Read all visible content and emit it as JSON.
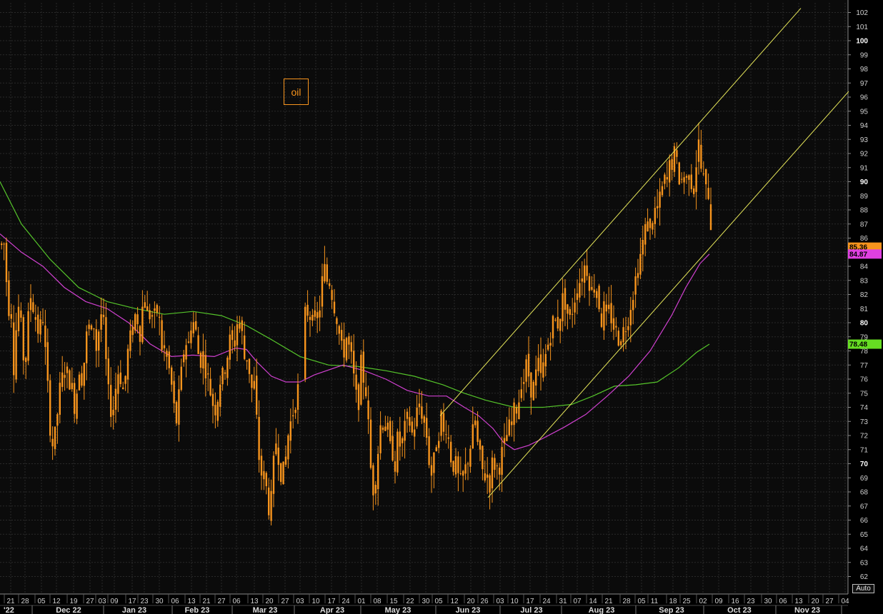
{
  "chart_data": {
    "type": "candlestick",
    "annotation": "oil",
    "auto_label": "Auto",
    "ylim": [
      61.5,
      102.5
    ],
    "y_ticks": [
      62,
      63,
      64,
      65,
      66,
      67,
      68,
      69,
      70,
      71,
      72,
      73,
      74,
      75,
      76,
      77,
      78,
      79,
      80,
      81,
      82,
      83,
      84,
      85,
      86,
      87,
      88,
      89,
      90,
      91,
      92,
      93,
      94,
      95,
      96,
      97,
      98,
      99,
      100,
      101,
      102
    ],
    "y_ticks_bold": [
      70,
      80,
      90,
      100
    ],
    "x_tick_labels": [
      "21",
      "28",
      "05",
      "12",
      "19",
      "27",
      "03",
      "09",
      "17",
      "23",
      "30",
      "06",
      "13",
      "21",
      "27",
      "06",
      "13",
      "20",
      "27",
      "03",
      "10",
      "17",
      "24",
      "01",
      "08",
      "15",
      "22",
      "30",
      "05",
      "12",
      "20",
      "26",
      "03",
      "10",
      "17",
      "24",
      "31",
      "07",
      "14",
      "21",
      "28",
      "05",
      "11",
      "18",
      "25",
      "02",
      "09",
      "16",
      "23",
      "30",
      "06",
      "13",
      "20",
      "27",
      "04"
    ],
    "month_labels": [
      "'22",
      "Dec 22",
      "Jan 23",
      "Feb 23",
      "Mar 23",
      "Apr 23",
      "May 23",
      "Jun 23",
      "Jul 23",
      "Aug 23",
      "Sep 23",
      "Oct 23",
      "Nov 23"
    ],
    "price_path": [
      [
        0,
        85.5
      ],
      [
        5,
        85.6
      ],
      [
        10,
        81
      ],
      [
        14,
        81.5
      ],
      [
        18,
        77
      ],
      [
        22,
        80
      ],
      [
        26,
        81.5
      ],
      [
        30,
        78
      ],
      [
        34,
        77
      ],
      [
        38,
        80
      ],
      [
        42,
        82
      ],
      [
        46,
        81
      ],
      [
        50,
        80
      ],
      [
        54,
        79
      ],
      [
        58,
        81
      ],
      [
        62,
        78
      ],
      [
        66,
        75
      ],
      [
        70,
        72
      ],
      [
        74,
        71
      ],
      [
        78,
        73
      ],
      [
        82,
        75
      ],
      [
        86,
        76
      ],
      [
        90,
        77
      ],
      [
        94,
        76
      ],
      [
        98,
        76
      ],
      [
        102,
        74
      ],
      [
        106,
        75
      ],
      [
        110,
        77
      ],
      [
        114,
        76
      ],
      [
        118,
        78
      ],
      [
        122,
        80
      ],
      [
        126,
        79
      ],
      [
        130,
        80
      ],
      [
        134,
        78
      ],
      [
        138,
        80
      ],
      [
        142,
        81
      ],
      [
        146,
        78
      ],
      [
        150,
        75
      ],
      [
        154,
        74
      ],
      [
        158,
        74
      ],
      [
        162,
        76
      ],
      [
        166,
        77
      ],
      [
        170,
        75
      ],
      [
        174,
        76
      ],
      [
        178,
        78
      ],
      [
        182,
        79
      ],
      [
        186,
        80
      ],
      [
        190,
        81
      ],
      [
        194,
        79
      ],
      [
        198,
        81
      ],
      [
        202,
        82
      ],
      [
        206,
        80
      ],
      [
        210,
        81
      ],
      [
        214,
        80
      ],
      [
        218,
        81
      ],
      [
        222,
        80
      ],
      [
        226,
        78
      ],
      [
        230,
        78
      ],
      [
        234,
        77
      ],
      [
        238,
        76
      ],
      [
        242,
        74
      ],
      [
        246,
        73
      ],
      [
        250,
        75
      ],
      [
        254,
        77
      ],
      [
        258,
        79
      ],
      [
        262,
        78
      ],
      [
        266,
        80
      ],
      [
        270,
        80
      ],
      [
        274,
        79
      ],
      [
        278,
        77
      ],
      [
        282,
        78
      ],
      [
        286,
        77
      ],
      [
        290,
        76
      ],
      [
        294,
        75
      ],
      [
        298,
        74
      ],
      [
        302,
        74
      ],
      [
        306,
        76
      ],
      [
        310,
        76
      ],
      [
        314,
        77
      ],
      [
        318,
        78
      ],
      [
        322,
        79
      ],
      [
        326,
        78
      ],
      [
        330,
        80
      ],
      [
        334,
        80
      ],
      [
        338,
        79
      ],
      [
        342,
        77
      ],
      [
        346,
        78
      ],
      [
        350,
        75
      ],
      [
        354,
        76
      ],
      [
        358,
        73
      ],
      [
        362,
        70
      ],
      [
        366,
        69
      ],
      [
        370,
        69
      ],
      [
        374,
        67
      ],
      [
        378,
        67
      ],
      [
        382,
        70
      ],
      [
        386,
        72
      ],
      [
        390,
        70
      ],
      [
        394,
        69
      ],
      [
        398,
        70
      ],
      [
        402,
        72
      ],
      [
        406,
        73
      ],
      [
        410,
        74
      ],
      [
        414,
        75
      ],
      [
        418,
        75.5
      ],
      [
        424,
        80
      ],
      [
        428,
        81
      ],
      [
        432,
        80.5
      ],
      [
        436,
        81
      ],
      [
        440,
        80
      ],
      [
        444,
        80
      ],
      [
        448,
        82
      ],
      [
        452,
        84
      ],
      [
        456,
        83
      ],
      [
        460,
        83
      ],
      [
        464,
        82
      ],
      [
        468,
        81
      ],
      [
        472,
        80
      ],
      [
        476,
        78
      ],
      [
        480,
        78
      ],
      [
        484,
        79
      ],
      [
        488,
        78
      ],
      [
        492,
        77
      ],
      [
        496,
        75
      ],
      [
        500,
        74
      ],
      [
        504,
        77
      ],
      [
        508,
        76
      ],
      [
        512,
        75
      ],
      [
        516,
        71
      ],
      [
        520,
        68
      ],
      [
        524,
        69
      ],
      [
        528,
        71
      ],
      [
        532,
        73
      ],
      [
        536,
        73
      ],
      [
        540,
        73
      ],
      [
        544,
        71
      ],
      [
        548,
        71
      ],
      [
        552,
        70
      ],
      [
        556,
        72
      ],
      [
        560,
        71
      ],
      [
        564,
        72
      ],
      [
        568,
        73
      ],
      [
        572,
        73
      ],
      [
        576,
        72
      ],
      [
        580,
        73
      ],
      [
        584,
        74
      ],
      [
        588,
        74
      ],
      [
        592,
        73
      ],
      [
        596,
        72
      ],
      [
        600,
        70
      ],
      [
        604,
        69
      ],
      [
        608,
        71
      ],
      [
        612,
        72
      ],
      [
        616,
        73.5
      ],
      [
        620,
        72
      ],
      [
        624,
        73
      ],
      [
        628,
        71
      ],
      [
        632,
        70
      ],
      [
        636,
        70
      ],
      [
        640,
        69
      ],
      [
        644,
        68.5
      ],
      [
        648,
        69
      ],
      [
        652,
        70
      ],
      [
        656,
        71
      ],
      [
        660,
        72
      ],
      [
        664,
        73
      ],
      [
        668,
        71
      ],
      [
        672,
        70
      ],
      [
        676,
        69
      ],
      [
        680,
        69.5
      ],
      [
        684,
        68.5
      ],
      [
        688,
        70
      ],
      [
        692,
        70
      ],
      [
        696,
        69.5
      ],
      [
        700,
        70.5
      ],
      [
        704,
        71
      ],
      [
        708,
        72
      ],
      [
        712,
        72.5
      ],
      [
        716,
        73
      ],
      [
        720,
        74
      ],
      [
        724,
        74
      ],
      [
        728,
        76
      ],
      [
        732,
        76
      ],
      [
        736,
        77
      ],
      [
        740,
        76
      ],
      [
        744,
        75
      ],
      [
        748,
        76
      ],
      [
        752,
        77
      ],
      [
        756,
        76
      ],
      [
        760,
        77
      ],
      [
        764,
        78
      ],
      [
        768,
        79
      ],
      [
        772,
        80
      ],
      [
        776,
        80
      ],
      [
        780,
        80
      ],
      [
        784,
        81
      ],
      [
        788,
        82
      ],
      [
        792,
        81
      ],
      [
        796,
        80
      ],
      [
        800,
        81
      ],
      [
        804,
        82
      ],
      [
        808,
        83
      ],
      [
        812,
        83
      ],
      [
        816,
        84
      ],
      [
        820,
        84
      ],
      [
        824,
        83
      ],
      [
        828,
        82
      ],
      [
        832,
        83
      ],
      [
        836,
        82
      ],
      [
        840,
        80
      ],
      [
        844,
        81
      ],
      [
        848,
        80
      ],
      [
        852,
        81
      ],
      [
        856,
        80
      ],
      [
        860,
        79.5
      ],
      [
        864,
        79
      ],
      [
        868,
        79
      ],
      [
        872,
        79.5
      ],
      [
        876,
        80
      ],
      [
        880,
        81
      ],
      [
        884,
        82
      ],
      [
        888,
        83
      ],
      [
        892,
        84
      ],
      [
        896,
        85
      ],
      [
        900,
        86
      ],
      [
        904,
        87
      ],
      [
        908,
        87
      ],
      [
        912,
        87
      ],
      [
        916,
        88
      ],
      [
        920,
        88
      ],
      [
        924,
        89
      ],
      [
        928,
        90
      ],
      [
        932,
        90
      ],
      [
        936,
        91
      ],
      [
        940,
        91.5
      ],
      [
        944,
        92
      ],
      [
        948,
        90.5
      ],
      [
        952,
        90
      ],
      [
        956,
        90.5
      ],
      [
        960,
        90
      ],
      [
        964,
        91
      ],
      [
        968,
        89.5
      ],
      [
        972,
        90.5
      ],
      [
        976,
        93
      ],
      [
        980,
        91
      ],
      [
        984,
        90
      ],
      [
        988,
        89
      ],
      [
        992,
        89.5
      ],
      [
        995,
        85.36
      ]
    ],
    "ma_magenta": [
      [
        0,
        86.3
      ],
      [
        30,
        85
      ],
      [
        60,
        84
      ],
      [
        90,
        82.5
      ],
      [
        120,
        81.5
      ],
      [
        150,
        81
      ],
      [
        180,
        80
      ],
      [
        210,
        78.5
      ],
      [
        240,
        77.6
      ],
      [
        270,
        77.7
      ],
      [
        300,
        77.6
      ],
      [
        330,
        78.2
      ],
      [
        345,
        78.1
      ],
      [
        360,
        77.2
      ],
      [
        380,
        76.2
      ],
      [
        400,
        75.8
      ],
      [
        420,
        75.8
      ],
      [
        440,
        76.3
      ],
      [
        480,
        77
      ],
      [
        510,
        76.6
      ],
      [
        540,
        76
      ],
      [
        570,
        75.2
      ],
      [
        600,
        74.8
      ],
      [
        625,
        74.8
      ],
      [
        650,
        74
      ],
      [
        670,
        73.4
      ],
      [
        690,
        72.5
      ],
      [
        705,
        71.5
      ],
      [
        720,
        71
      ],
      [
        740,
        71.3
      ],
      [
        760,
        71.8
      ],
      [
        790,
        72.6
      ],
      [
        820,
        73.5
      ],
      [
        850,
        74.8
      ],
      [
        880,
        76.2
      ],
      [
        910,
        78
      ],
      [
        940,
        80.5
      ],
      [
        960,
        82.5
      ],
      [
        980,
        84.2
      ],
      [
        993,
        84.87
      ]
    ],
    "ma_green": [
      [
        0,
        90
      ],
      [
        30,
        87
      ],
      [
        70,
        84.5
      ],
      [
        110,
        82.5
      ],
      [
        150,
        81.5
      ],
      [
        190,
        81
      ],
      [
        230,
        80.6
      ],
      [
        270,
        80.8
      ],
      [
        310,
        80.5
      ],
      [
        345,
        79.8
      ],
      [
        380,
        78.8
      ],
      [
        420,
        77.6
      ],
      [
        460,
        77
      ],
      [
        500,
        76.9
      ],
      [
        540,
        76.6
      ],
      [
        580,
        76.2
      ],
      [
        620,
        75.6
      ],
      [
        650,
        75
      ],
      [
        680,
        74.5
      ],
      [
        720,
        74
      ],
      [
        760,
        74
      ],
      [
        800,
        74.2
      ],
      [
        830,
        74.8
      ],
      [
        860,
        75.5
      ],
      [
        890,
        75.6
      ],
      [
        920,
        75.8
      ],
      [
        950,
        76.8
      ],
      [
        975,
        77.9
      ],
      [
        993,
        78.48
      ]
    ],
    "channel_lines": [
      {
        "from": [
          616,
          73.4
        ],
        "to": [
          1121,
          102.3
        ]
      },
      {
        "from": [
          683,
          67.6
        ],
        "to": [
          1188,
          96.4
        ]
      }
    ],
    "last_price": {
      "value": 85.36,
      "label": "85.36",
      "color": "#f7941d"
    },
    "ma_badges": [
      {
        "value": 84.87,
        "label": "84.87",
        "color": "#e040e0"
      },
      {
        "value": 78.48,
        "label": "78.48",
        "color": "#66dd22"
      }
    ],
    "colors": {
      "background": "#0b0b0b",
      "grid": "#2a2a2a",
      "candles": "#f7941d",
      "channel": "#e8e85a",
      "ma_magenta": "#d040d0",
      "ma_green": "#55c42a"
    }
  }
}
